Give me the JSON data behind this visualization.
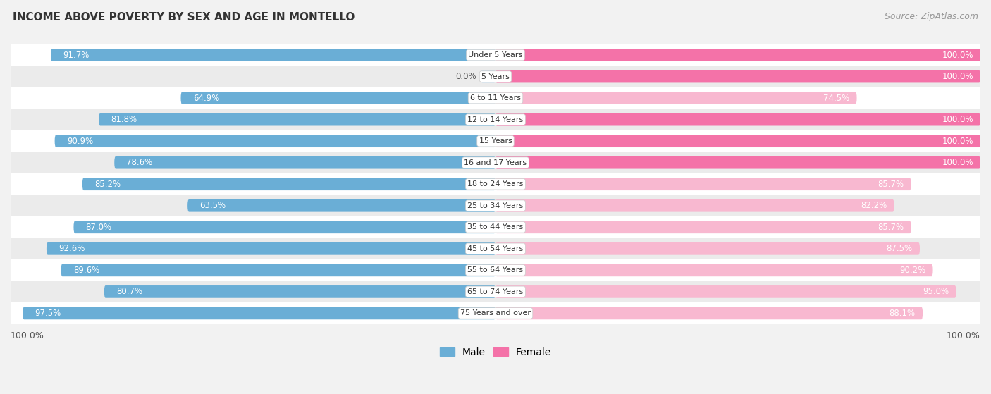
{
  "title": "INCOME ABOVE POVERTY BY SEX AND AGE IN MONTELLO",
  "source": "Source: ZipAtlas.com",
  "categories": [
    "Under 5 Years",
    "5 Years",
    "6 to 11 Years",
    "12 to 14 Years",
    "15 Years",
    "16 and 17 Years",
    "18 to 24 Years",
    "25 to 34 Years",
    "35 to 44 Years",
    "45 to 54 Years",
    "55 to 64 Years",
    "65 to 74 Years",
    "75 Years and over"
  ],
  "male_values": [
    91.7,
    0.0,
    64.9,
    81.8,
    90.9,
    78.6,
    85.2,
    63.5,
    87.0,
    92.6,
    89.6,
    80.7,
    97.5
  ],
  "female_values": [
    100.0,
    100.0,
    74.5,
    100.0,
    100.0,
    100.0,
    85.7,
    82.2,
    85.7,
    87.5,
    90.2,
    95.0,
    88.1
  ],
  "male_color": "#6aaed6",
  "female_color": "#f472a8",
  "male_zero_color": "#c5dcee",
  "female_low_color": "#f8b8d0",
  "background_color": "#f2f2f2",
  "row_even_color": "#ffffff",
  "row_odd_color": "#ebebeb",
  "title_fontsize": 11,
  "label_fontsize": 8.5,
  "source_fontsize": 9,
  "legend_fontsize": 10,
  "x_bottom_left": "100.0%",
  "x_bottom_right": "100.0%"
}
